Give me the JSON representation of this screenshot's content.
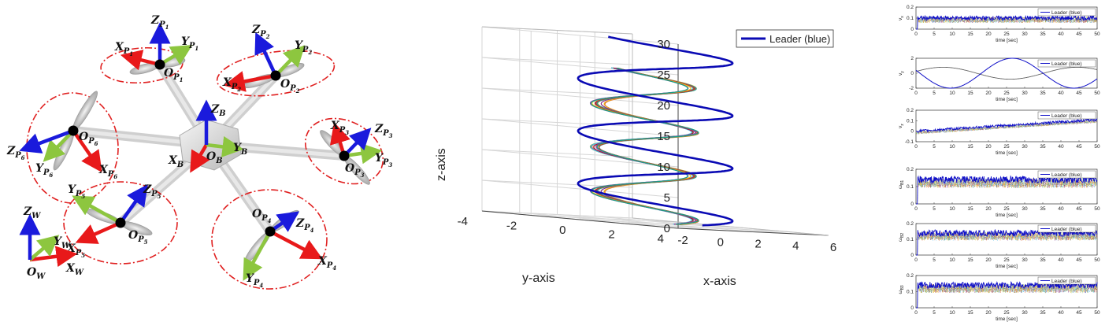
{
  "drone": {
    "frames": [
      {
        "id": "P1",
        "o": "O",
        "os": "P",
        "on": "1",
        "x": "X",
        "xs": "P",
        "xn": "1",
        "y": "Y",
        "ys": "P",
        "yn": "1",
        "z": "Z",
        "zs": "P",
        "zn": "1"
      },
      {
        "id": "P2",
        "o": "O",
        "os": "P",
        "on": "2",
        "x": "X",
        "xs": "P",
        "xn": "2",
        "y": "Y",
        "ys": "P",
        "yn": "2",
        "z": "Z",
        "zs": "P",
        "zn": "2"
      },
      {
        "id": "P3",
        "o": "O",
        "os": "P",
        "on": "3",
        "x": "X",
        "xs": "P",
        "xn": "3",
        "y": "Y",
        "ys": "P",
        "yn": "3",
        "z": "Z",
        "zs": "P",
        "zn": "3"
      },
      {
        "id": "P4",
        "o": "O",
        "os": "P",
        "on": "4",
        "x": "X",
        "xs": "P",
        "xn": "4",
        "y": "Y",
        "ys": "P",
        "yn": "4",
        "z": "Z",
        "zs": "P",
        "zn": "4"
      },
      {
        "id": "P5",
        "o": "O",
        "os": "P",
        "on": "5",
        "x": "X",
        "xs": "P",
        "xn": "5",
        "y": "Y",
        "ys": "P",
        "yn": "5",
        "z": "Z",
        "zs": "P",
        "zn": "5"
      },
      {
        "id": "P6",
        "o": "O",
        "os": "P",
        "on": "6",
        "x": "X",
        "xs": "P",
        "xn": "6",
        "y": "Y",
        "ys": "P",
        "yn": "6",
        "z": "Z",
        "zs": "P",
        "zn": "6"
      }
    ],
    "body": {
      "o": "O",
      "x": "X",
      "y": "Y",
      "z": "Z",
      "sub": "B"
    },
    "world": {
      "o": "O",
      "x": "X",
      "y": "Y",
      "z": "Z",
      "sub": "W"
    },
    "colors": {
      "x": "#e8191a",
      "y": "#8dc63f",
      "z": "#1a1adc",
      "rotor_circle": "#e02020",
      "arm": "#cfcfcf"
    }
  },
  "chart_data": [
    {
      "type": "line",
      "title": "",
      "xlabel": "x-axis",
      "ylabel": "y-axis",
      "zlabel": "z-axis",
      "x_ticks": [
        "-2",
        "0",
        "2",
        "4",
        "6"
      ],
      "y_ticks": [
        "-4",
        "-2",
        "0",
        "2",
        "4"
      ],
      "z_ticks": [
        "0",
        "5",
        "10",
        "15",
        "20",
        "25",
        "30"
      ],
      "xlim": [
        -2,
        6
      ],
      "ylim": [
        -4,
        4
      ],
      "zlim": [
        0,
        30
      ],
      "grid": true,
      "legend_position": "top-right",
      "series": [
        {
          "name": "Leader (blue)",
          "role": "leader",
          "color": "#0a0ab4",
          "shape": "helix",
          "center": [
            2,
            0
          ],
          "radius": 2.5,
          "z_range": [
            0,
            30
          ],
          "turns": 3.5
        },
        {
          "role": "followers",
          "count": 12,
          "colors": [
            "#d95319",
            "#edb120",
            "#7e2f8e",
            "#77ac30",
            "#4dbeee",
            "#a2142f",
            "#e07b00",
            "#2a9d8f",
            "#c0392b",
            "#f1c40f",
            "#8e44ad",
            "#16a085"
          ],
          "shape": "helix",
          "center": [
            1.2,
            0.2
          ],
          "radius": 1.6,
          "z_range": [
            0,
            25
          ],
          "turns": 3.5
        }
      ]
    },
    {
      "type": "line",
      "panels": [
        {
          "ylabel_main": "v",
          "ylabel_sub": "x",
          "yticks": [
            "0",
            "0.1",
            "0.2"
          ],
          "ylim": [
            0,
            0.2
          ],
          "leader_mean": 0.1,
          "follower_mean": 0.085,
          "noise": 0.04
        },
        {
          "ylabel_main": "v",
          "ylabel_sub": "y",
          "yticks": [
            "-2",
            "0",
            "2"
          ],
          "ylim": [
            -2,
            2
          ],
          "leader_amp": 2,
          "leader_period": 34,
          "follower_amp": 0.8,
          "follower_period": 37
        },
        {
          "ylabel_main": "v",
          "ylabel_sub": "z",
          "yticks": [
            "-0.1",
            "0",
            "0.1",
            "0.2"
          ],
          "ylim": [
            -0.1,
            0.2
          ],
          "leader_start": 0,
          "leader_end": 0.11,
          "noise": 0.03
        },
        {
          "ylabel_main": "ω",
          "ylabel_sub": "B1",
          "yticks": [
            "0",
            "0.1",
            "0.2"
          ],
          "ylim": [
            0,
            0.2
          ],
          "leader_mean": 0.14,
          "follower_mean": 0.12,
          "noise": 0.04
        },
        {
          "ylabel_main": "ω",
          "ylabel_sub": "B2",
          "yticks": [
            "0",
            "0.1",
            "0.2"
          ],
          "ylim": [
            0,
            0.2
          ],
          "leader_mean": 0.14,
          "follower_mean": 0.12,
          "noise": 0.04
        },
        {
          "ylabel_main": "ω",
          "ylabel_sub": "B3",
          "yticks": [
            "0",
            "0.1",
            "0.2"
          ],
          "ylim": [
            0,
            0.2
          ],
          "leader_mean": 0.14,
          "follower_mean": 0.12,
          "noise": 0.04
        }
      ],
      "x_ticks": [
        "0",
        "5",
        "10",
        "15",
        "20",
        "25",
        "30",
        "35",
        "40",
        "45",
        "50"
      ],
      "xlim": [
        0,
        50
      ],
      "xlabel": "time [sec]",
      "legend": "Leader (blue)",
      "leader_color": "#1010c8",
      "follower_colors": [
        "#d95319",
        "#77ac30",
        "#7e2f8e",
        "#edb120",
        "#4dbeee"
      ]
    }
  ]
}
